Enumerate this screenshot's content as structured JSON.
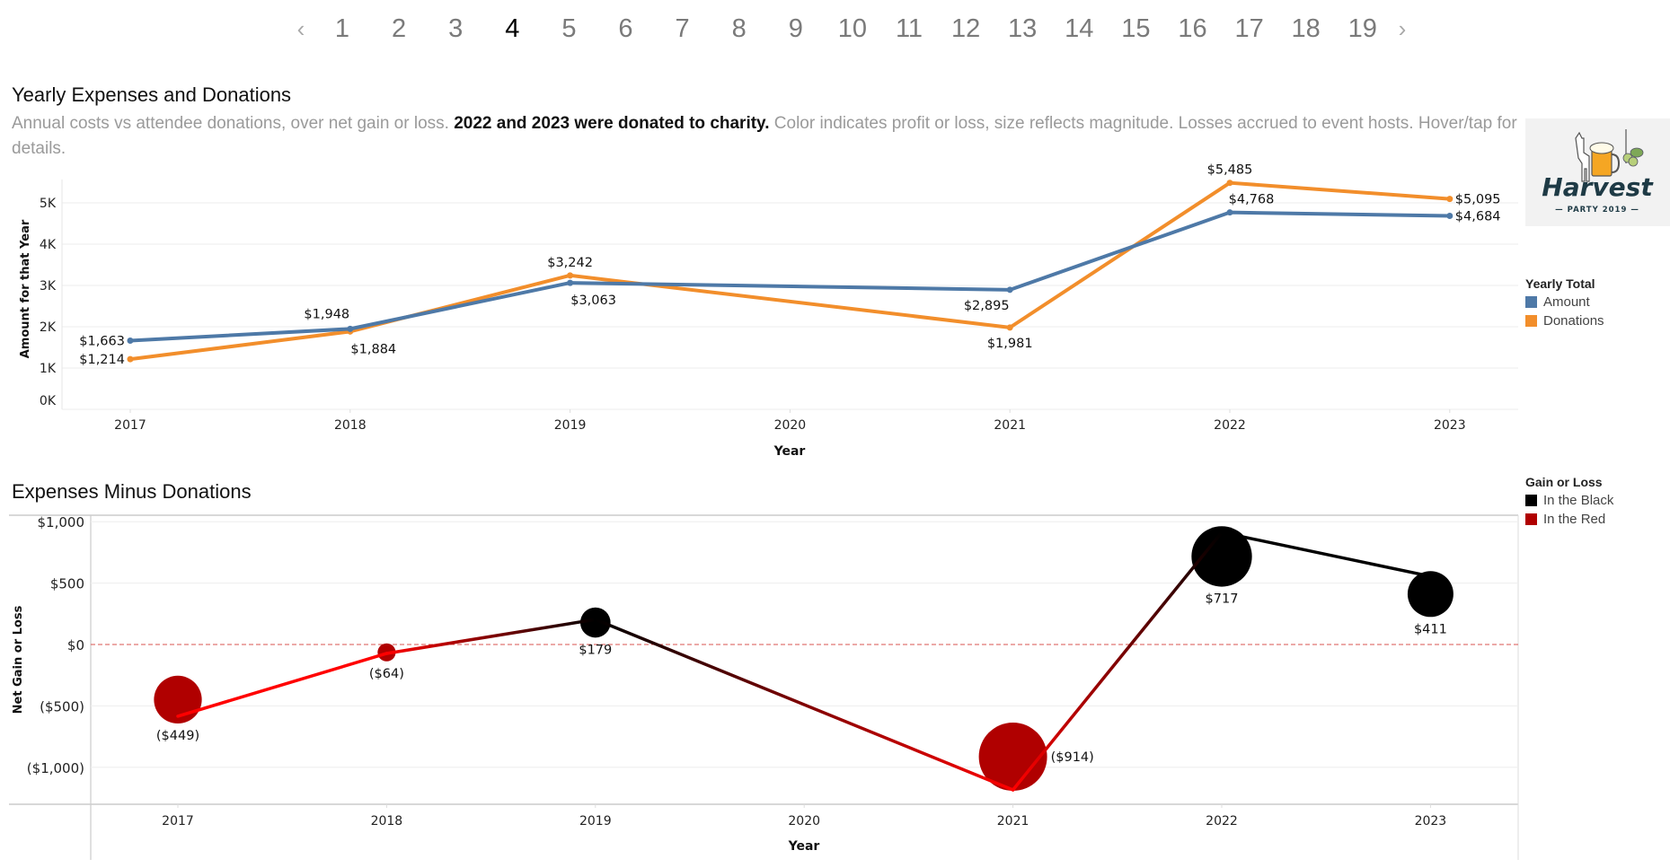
{
  "pagination": {
    "prev_icon": "chevron-left-icon",
    "next_icon": "chevron-right-icon",
    "prev_label": "‹",
    "next_label": "›",
    "pages": [
      "1",
      "2",
      "3",
      "4",
      "5",
      "6",
      "7",
      "8",
      "9",
      "10",
      "11",
      "12",
      "13",
      "14",
      "15",
      "16",
      "17",
      "18",
      "19"
    ],
    "current": "4"
  },
  "header": {
    "title": "Yearly Expenses and Donations",
    "subtitle_part1": "Annual costs vs attendee donations, over net gain or loss. ",
    "subtitle_bold": "2022 and 2023 were donated to charity.",
    "subtitle_part2": " Color indicates profit or loss, size reflects magnitude. Losses accrued to event hosts. Hover/tap for details."
  },
  "logo": {
    "name": "Harvest",
    "tagline": "— PARTY 2019 —"
  },
  "colors": {
    "amount": "#4e79a7",
    "donations": "#f28e2b",
    "in_the_black": "#000000",
    "in_the_red": "#b00000",
    "line_red": "#ff0000",
    "zero_line": "#d9534f"
  },
  "chart_data": [
    {
      "type": "line",
      "title": "Yearly Expenses and Donations",
      "xlabel": "Year",
      "ylabel": "Amount for that Year",
      "x": [
        2017,
        2018,
        2019,
        2020,
        2021,
        2022,
        2023
      ],
      "x_tick_labels": [
        "2017",
        "2018",
        "2019",
        "2020",
        "2021",
        "2022",
        "2023"
      ],
      "y_ticks": [
        0,
        1000,
        2000,
        3000,
        4000,
        5000
      ],
      "y_tick_labels": [
        "0K",
        "1K",
        "2K",
        "3K",
        "4K",
        "5K"
      ],
      "ylim": [
        0,
        5400
      ],
      "grid": true,
      "legend": {
        "title": "Yearly Total",
        "position": "right"
      },
      "series": [
        {
          "name": "Amount",
          "color": "#4e79a7",
          "points": [
            {
              "x": 2017,
              "y": 1663,
              "label": "$1,663",
              "label_pos": "left"
            },
            {
              "x": 2018,
              "y": 1948,
              "label": "$1,948",
              "label_pos": "above-left"
            },
            {
              "x": 2019,
              "y": 3063,
              "label": "$3,063",
              "label_pos": "below-right"
            },
            {
              "x": 2021,
              "y": 2895,
              "label": "$2,895",
              "label_pos": "below-left"
            },
            {
              "x": 2022,
              "y": 4768,
              "label": "$4,768",
              "label_pos": "above-right"
            },
            {
              "x": 2023,
              "y": 4684,
              "label": "$4,684",
              "label_pos": "right"
            }
          ]
        },
        {
          "name": "Donations",
          "color": "#f28e2b",
          "points": [
            {
              "x": 2017,
              "y": 1214,
              "label": "$1,214",
              "label_pos": "left"
            },
            {
              "x": 2018,
              "y": 1884,
              "label": "$1,884",
              "label_pos": "below-right"
            },
            {
              "x": 2019,
              "y": 3242,
              "label": "$3,242",
              "label_pos": "above"
            },
            {
              "x": 2021,
              "y": 1981,
              "label": "$1,981",
              "label_pos": "below"
            },
            {
              "x": 2022,
              "y": 5485,
              "label": "$5,485",
              "label_pos": "above"
            },
            {
              "x": 2023,
              "y": 5095,
              "label": "$5,095",
              "label_pos": "right"
            }
          ]
        }
      ]
    },
    {
      "type": "scatter",
      "title": "Expenses Minus Donations",
      "xlabel": "Year",
      "ylabel": "Net Gain or Loss",
      "x": [
        2017,
        2018,
        2019,
        2020,
        2021,
        2022,
        2023
      ],
      "x_tick_labels": [
        "2017",
        "2018",
        "2019",
        "2020",
        "2021",
        "2022",
        "2023"
      ],
      "y_ticks": [
        1000,
        500,
        0,
        -500,
        -1000
      ],
      "y_tick_labels": [
        "$1,000",
        "$500",
        "$0",
        "($500)",
        "($1,000)"
      ],
      "ylim": [
        -1300,
        1060
      ],
      "grid": true,
      "reference_line": {
        "value": 0,
        "style": "dashed"
      },
      "legend": {
        "title": "Gain or Loss",
        "position": "right",
        "items": [
          {
            "name": "In the Black",
            "color": "#000000"
          },
          {
            "name": "In the Red",
            "color": "#b00000"
          }
        ]
      },
      "bubbles": [
        {
          "x": 2017,
          "y": -449,
          "label": "($449)",
          "status": "In the Red",
          "label_pos": "below"
        },
        {
          "x": 2018,
          "y": -64,
          "label": "($64)",
          "status": "In the Red",
          "label_pos": "below"
        },
        {
          "x": 2019,
          "y": 179,
          "label": "$179",
          "status": "In the Black",
          "label_pos": "below"
        },
        {
          "x": 2021,
          "y": -914,
          "label": "($914)",
          "status": "In the Red",
          "label_pos": "right"
        },
        {
          "x": 2022,
          "y": 717,
          "label": "$717",
          "status": "In the Black",
          "label_pos": "below"
        },
        {
          "x": 2023,
          "y": 411,
          "label": "$411",
          "status": "In the Black",
          "label_pos": "below"
        }
      ],
      "trend_line": [
        {
          "x": 2017,
          "y": -584
        },
        {
          "x": 2018,
          "y": -73
        },
        {
          "x": 2019,
          "y": 204
        },
        {
          "x": 2021,
          "y": -1184
        },
        {
          "x": 2022,
          "y": 913
        },
        {
          "x": 2023,
          "y": 555
        }
      ]
    }
  ],
  "lower_title": "Expenses Minus Donations"
}
